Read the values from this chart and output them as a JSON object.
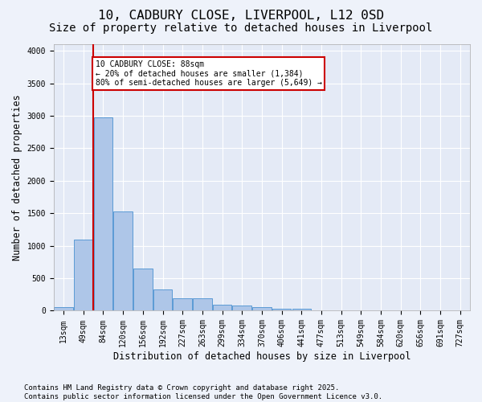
{
  "title_line1": "10, CADBURY CLOSE, LIVERPOOL, L12 0SD",
  "title_line2": "Size of property relative to detached houses in Liverpool",
  "xlabel": "Distribution of detached houses by size in Liverpool",
  "ylabel": "Number of detached properties",
  "bar_values": [
    50,
    1100,
    2980,
    1530,
    650,
    330,
    190,
    190,
    90,
    80,
    55,
    30,
    30,
    0,
    0,
    0,
    0,
    0,
    0,
    0,
    0
  ],
  "bar_labels": [
    "13sqm",
    "49sqm",
    "84sqm",
    "120sqm",
    "156sqm",
    "192sqm",
    "227sqm",
    "263sqm",
    "299sqm",
    "334sqm",
    "370sqm",
    "406sqm",
    "441sqm",
    "477sqm",
    "513sqm",
    "549sqm",
    "584sqm",
    "620sqm",
    "656sqm",
    "691sqm",
    "727sqm"
  ],
  "bar_color": "#AEC6E8",
  "bar_edge_color": "#5B9BD5",
  "fig_bg_color": "#EEF2FA",
  "ax_bg_color": "#E4EAF6",
  "grid_color": "#FFFFFF",
  "vline_x_index": 2,
  "vline_color": "#CC0000",
  "annotation_text": "10 CADBURY CLOSE: 88sqm\n← 20% of detached houses are smaller (1,384)\n80% of semi-detached houses are larger (5,649) →",
  "annotation_box_color": "#CC0000",
  "ylim": [
    0,
    4100
  ],
  "yticks": [
    0,
    500,
    1000,
    1500,
    2000,
    2500,
    3000,
    3500,
    4000
  ],
  "footnote": "Contains HM Land Registry data © Crown copyright and database right 2025.\nContains public sector information licensed under the Open Government Licence v3.0.",
  "title_fontsize": 11.5,
  "subtitle_fontsize": 10,
  "axis_label_fontsize": 8.5,
  "tick_fontsize": 7,
  "footnote_fontsize": 6.5,
  "annotation_fontsize": 7
}
